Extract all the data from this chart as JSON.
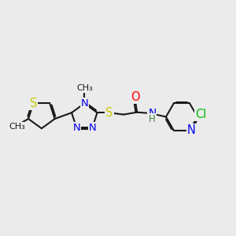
{
  "bg_color": "#ebebeb",
  "bond_color": "#1a1a1a",
  "bond_width": 1.5,
  "dbo": 0.055,
  "atom_colors": {
    "S": "#cccc00",
    "N": "#0000ee",
    "O": "#ff0000",
    "Cl": "#00bb00",
    "H": "#448844",
    "C": "#1a1a1a"
  },
  "fs": 9.5
}
